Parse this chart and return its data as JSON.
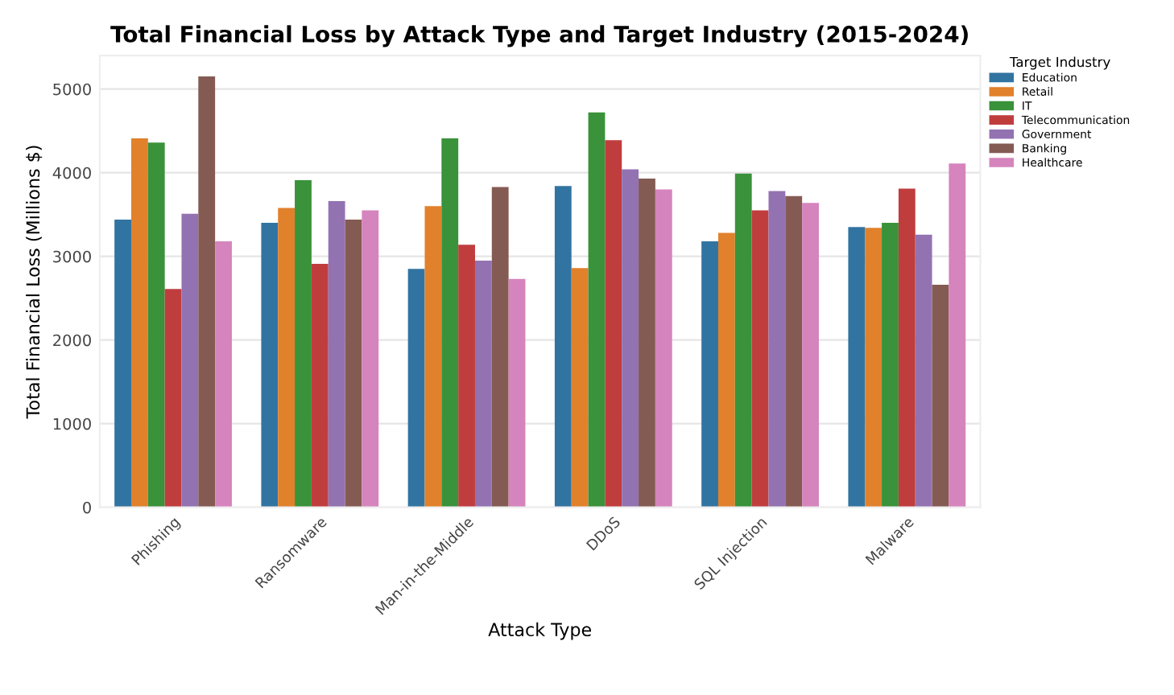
{
  "chart_data": {
    "type": "bar",
    "title": "Total Financial Loss by Attack Type and Target Industry (2015-2024)",
    "xlabel": "Attack Type",
    "ylabel": "Total Financial Loss (Millions $)",
    "legend_title": "Target Industry",
    "categories": [
      "Phishing",
      "Ransomware",
      "Man-in-the-Middle",
      "DDoS",
      "SQL Injection",
      "Malware"
    ],
    "series": [
      {
        "name": "Education",
        "color": "#3274a1",
        "values": [
          3440,
          3400,
          2850,
          3840,
          3180,
          3350
        ]
      },
      {
        "name": "Retail",
        "color": "#e1812c",
        "values": [
          4410,
          3580,
          3600,
          2860,
          3280,
          3340
        ]
      },
      {
        "name": "IT",
        "color": "#3a923a",
        "values": [
          4360,
          3910,
          4410,
          4720,
          3990,
          3400
        ]
      },
      {
        "name": "Telecommunication",
        "color": "#c03d3e",
        "values": [
          2610,
          2910,
          3140,
          4390,
          3550,
          3810
        ]
      },
      {
        "name": "Government",
        "color": "#9372b2",
        "values": [
          3510,
          3660,
          2950,
          4040,
          3780,
          3260
        ]
      },
      {
        "name": "Banking",
        "color": "#845b53",
        "values": [
          5150,
          3440,
          3830,
          3930,
          3720,
          2660
        ]
      },
      {
        "name": "Healthcare",
        "color": "#d684bd",
        "values": [
          3180,
          3550,
          2730,
          3800,
          3640,
          4110
        ]
      }
    ],
    "ylim": [
      0,
      5400
    ],
    "yticks": [
      0,
      1000,
      2000,
      3000,
      4000,
      5000
    ],
    "grid": "y",
    "legend": "top right"
  }
}
